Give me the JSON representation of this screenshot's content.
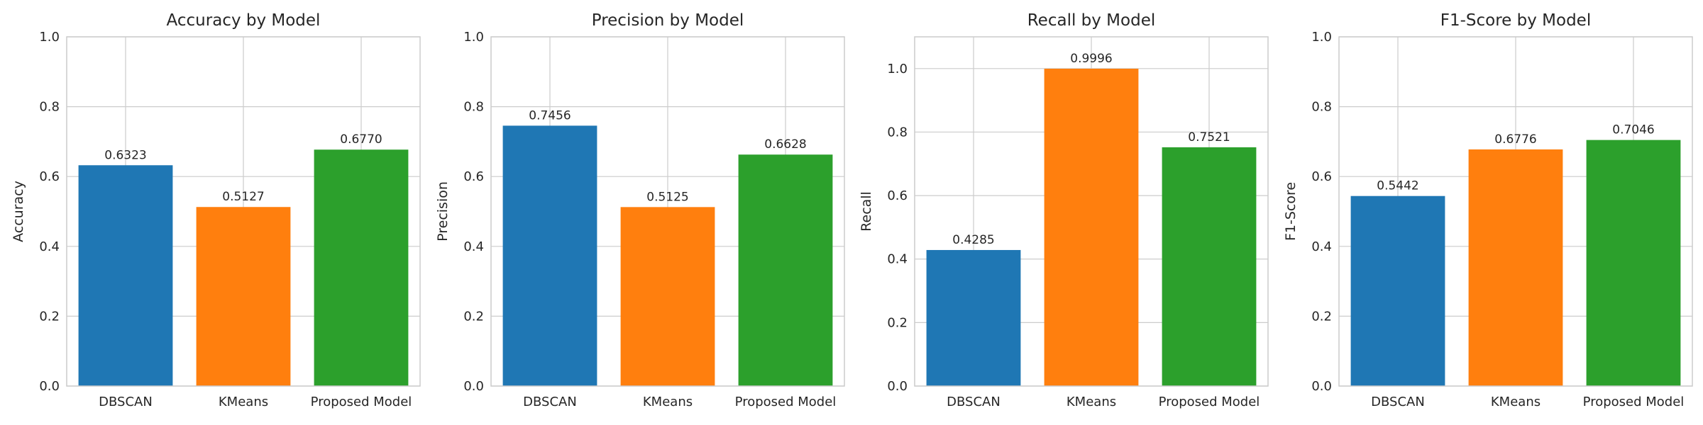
{
  "chart_data": [
    {
      "type": "bar",
      "title": "Accuracy by Model",
      "xlabel": "",
      "ylabel": "Accuracy",
      "categories": [
        "DBSCAN",
        "KMeans",
        "Proposed Model"
      ],
      "values": [
        0.6323,
        0.5127,
        0.677
      ],
      "value_labels": [
        "0.6323",
        "0.5127",
        "0.6770"
      ],
      "colors": [
        "#1f77b4",
        "#ff7f0e",
        "#2ca02c"
      ],
      "ylim": [
        0,
        1.0
      ],
      "yticks": [
        0.0,
        0.2,
        0.4,
        0.6,
        0.8,
        1.0
      ],
      "ytick_labels": [
        "0.0",
        "0.2",
        "0.4",
        "0.6",
        "0.8",
        "1.0"
      ],
      "grid": true
    },
    {
      "type": "bar",
      "title": "Precision by Model",
      "xlabel": "",
      "ylabel": "Precision",
      "categories": [
        "DBSCAN",
        "KMeans",
        "Proposed Model"
      ],
      "values": [
        0.7456,
        0.5125,
        0.6628
      ],
      "value_labels": [
        "0.7456",
        "0.5125",
        "0.6628"
      ],
      "colors": [
        "#1f77b4",
        "#ff7f0e",
        "#2ca02c"
      ],
      "ylim": [
        0,
        1.0
      ],
      "yticks": [
        0.0,
        0.2,
        0.4,
        0.6,
        0.8,
        1.0
      ],
      "ytick_labels": [
        "0.0",
        "0.2",
        "0.4",
        "0.6",
        "0.8",
        "1.0"
      ],
      "grid": true
    },
    {
      "type": "bar",
      "title": "Recall by Model",
      "xlabel": "",
      "ylabel": "Recall",
      "categories": [
        "DBSCAN",
        "KMeans",
        "Proposed Model"
      ],
      "values": [
        0.4285,
        0.9996,
        0.7521
      ],
      "value_labels": [
        "0.4285",
        "0.9996",
        "0.7521"
      ],
      "colors": [
        "#1f77b4",
        "#ff7f0e",
        "#2ca02c"
      ],
      "ylim": [
        0,
        1.1
      ],
      "yticks": [
        0.0,
        0.2,
        0.4,
        0.6,
        0.8,
        1.0
      ],
      "ytick_labels": [
        "0.0",
        "0.2",
        "0.4",
        "0.6",
        "0.8",
        "1.0"
      ],
      "grid": true
    },
    {
      "type": "bar",
      "title": "F1-Score by Model",
      "xlabel": "",
      "ylabel": "F1-Score",
      "categories": [
        "DBSCAN",
        "KMeans",
        "Proposed Model"
      ],
      "values": [
        0.5442,
        0.6776,
        0.7046
      ],
      "value_labels": [
        "0.5442",
        "0.6776",
        "0.7046"
      ],
      "colors": [
        "#1f77b4",
        "#ff7f0e",
        "#2ca02c"
      ],
      "ylim": [
        0,
        1.0
      ],
      "yticks": [
        0.0,
        0.2,
        0.4,
        0.6,
        0.8,
        1.0
      ],
      "ytick_labels": [
        "0.0",
        "0.2",
        "0.4",
        "0.6",
        "0.8",
        "1.0"
      ],
      "grid": true
    }
  ],
  "style": {
    "grid_color": "#cccccc",
    "spine_color": "#cccccc",
    "text_color": "#262626",
    "background": "#ffffff"
  }
}
